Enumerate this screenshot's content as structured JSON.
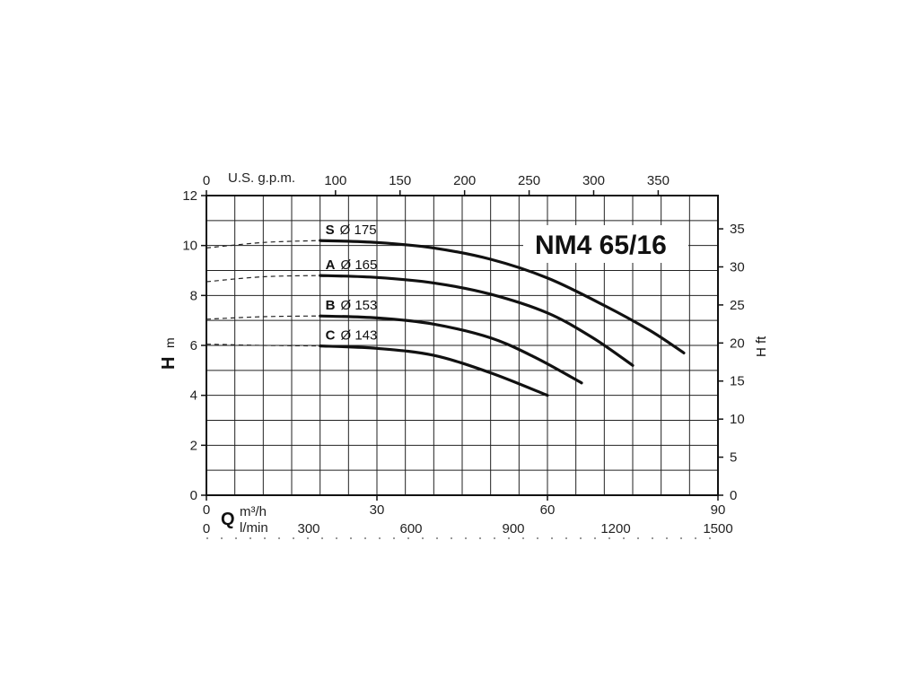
{
  "chart_data": {
    "type": "line",
    "title": "NM4 65/16",
    "x": {
      "label": "Q",
      "unit": "m³/h",
      "range": [
        0,
        90
      ],
      "ticks": [
        0,
        30,
        60,
        90
      ]
    },
    "x_lmin": {
      "unit": "l/min",
      "range": [
        0,
        1500
      ],
      "ticks": [
        0,
        300,
        600,
        900,
        1200,
        1500
      ]
    },
    "x_gpm": {
      "unit": "U.S. g.p.m.",
      "range": [
        0,
        396.3
      ],
      "ticks": [
        0,
        100,
        150,
        200,
        250,
        300,
        350
      ]
    },
    "y": {
      "label": "H",
      "unit": "m",
      "range": [
        0,
        12
      ],
      "ticks": [
        0,
        2,
        4,
        6,
        8,
        10,
        12
      ]
    },
    "y_ft": {
      "label": "H ft",
      "range": [
        0,
        39.37
      ],
      "ticks": [
        0,
        5,
        10,
        15,
        20,
        25,
        30,
        35
      ]
    },
    "grid": true,
    "series": [
      {
        "name": "S",
        "diameter": "Ø 175",
        "dashed": [
          [
            0,
            9.9
          ],
          [
            10,
            10.12
          ],
          [
            20,
            10.2
          ]
        ],
        "points": [
          [
            20,
            10.2
          ],
          [
            30,
            10.12
          ],
          [
            40,
            9.9
          ],
          [
            50,
            9.45
          ],
          [
            60,
            8.7
          ],
          [
            70,
            7.6
          ],
          [
            78,
            6.6
          ],
          [
            84,
            5.7
          ]
        ]
      },
      {
        "name": "A",
        "diameter": "Ø 165",
        "dashed": [
          [
            0,
            8.55
          ],
          [
            10,
            8.75
          ],
          [
            20,
            8.8
          ]
        ],
        "points": [
          [
            20,
            8.8
          ],
          [
            30,
            8.72
          ],
          [
            40,
            8.5
          ],
          [
            50,
            8.05
          ],
          [
            60,
            7.3
          ],
          [
            68,
            6.3
          ],
          [
            75,
            5.2
          ]
        ]
      },
      {
        "name": "B",
        "diameter": "Ø 153",
        "dashed": [
          [
            0,
            7.05
          ],
          [
            10,
            7.15
          ],
          [
            20,
            7.18
          ]
        ],
        "points": [
          [
            20,
            7.18
          ],
          [
            30,
            7.1
          ],
          [
            40,
            6.85
          ],
          [
            50,
            6.3
          ],
          [
            58,
            5.5
          ],
          [
            66,
            4.5
          ]
        ]
      },
      {
        "name": "C",
        "diameter": "Ø 143",
        "dashed": [
          [
            0,
            6.05
          ],
          [
            10,
            6.0
          ],
          [
            20,
            5.98
          ]
        ],
        "points": [
          [
            20,
            5.98
          ],
          [
            30,
            5.88
          ],
          [
            40,
            5.6
          ],
          [
            50,
            4.9
          ],
          [
            60,
            4.0
          ]
        ]
      }
    ]
  }
}
